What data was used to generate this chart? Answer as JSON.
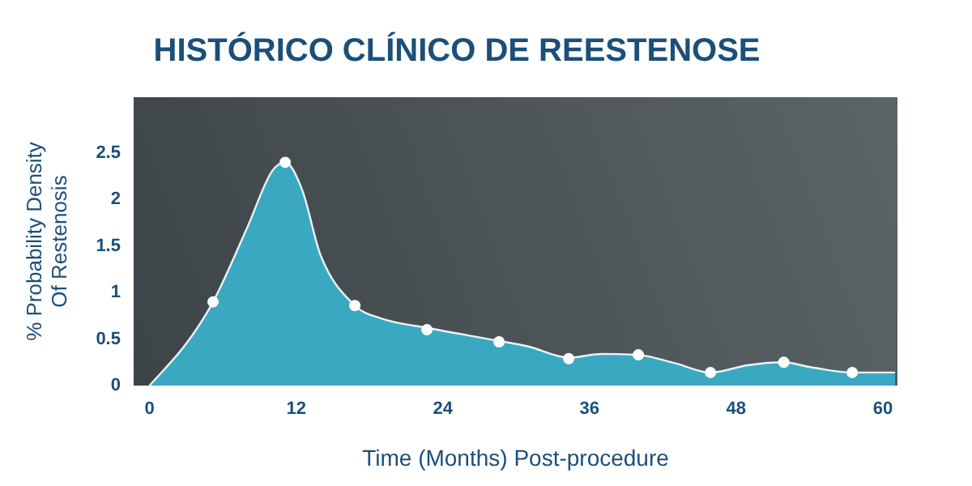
{
  "chart_data": {
    "type": "area",
    "title": "HISTÓRICO CLÍNICO DE REESTENOSE",
    "xlabel": "Time (Months) Post-procedure",
    "ylabel": "% Probability Density\nOf Restenosis",
    "xlim": [
      -1.3,
      61.2
    ],
    "xticks": [
      0,
      12,
      24,
      36,
      48,
      60
    ],
    "ylim": [
      0,
      3.1
    ],
    "yticks": [
      0,
      0.5,
      1,
      1.5,
      2,
      2.5
    ],
    "grid": false,
    "legend": false,
    "series": [
      {
        "color": "#3aa8c1",
        "marker": "none",
        "x": [
          0,
          3,
          5.2,
          8,
          10,
          11.1,
          12.5,
          14,
          16.8,
          19,
          22.7,
          28.6,
          31,
          34.3,
          37,
          40,
          43,
          45.9,
          49,
          51.9,
          54,
          57.5,
          61
        ],
        "values": [
          0,
          0.45,
          0.9,
          1.7,
          2.3,
          2.4,
          2.1,
          1.4,
          0.86,
          0.72,
          0.62,
          0.48,
          0.42,
          0.3,
          0.34,
          0.33,
          0.24,
          0.14,
          0.22,
          0.25,
          0.2,
          0.14,
          0.14
        ]
      },
      {
        "type": "scatter",
        "color": "#ffffff",
        "marker": "circle",
        "x": [
          5.2,
          11.1,
          16.8,
          22.7,
          28.6,
          34.3,
          40,
          45.9,
          51.9,
          57.5
        ],
        "values": [
          0.9,
          2.4,
          0.86,
          0.6,
          0.47,
          0.29,
          0.33,
          0.14,
          0.25,
          0.14
        ]
      }
    ]
  }
}
